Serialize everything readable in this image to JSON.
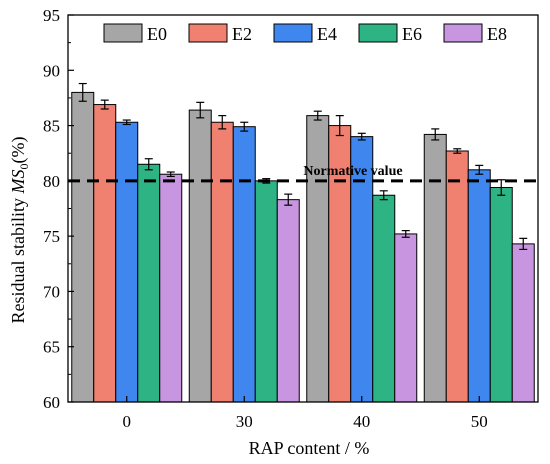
{
  "chart_data": {
    "type": "bar",
    "title": "",
    "xlabel": "RAP content / %",
    "ylabel_parts": [
      "Residual stability ",
      "MS",
      "0",
      "(%)"
    ],
    "ylim": [
      60,
      95
    ],
    "yticks": [
      60,
      65,
      70,
      75,
      80,
      85,
      90,
      95
    ],
    "categories": [
      "0",
      "30",
      "40",
      "50"
    ],
    "legend_position": "top",
    "grid": false,
    "series": [
      {
        "name": "E0",
        "color": "#a6a6a6",
        "values": [
          88.0,
          86.4,
          85.9,
          84.2
        ],
        "errors": [
          0.8,
          0.7,
          0.4,
          0.5
        ]
      },
      {
        "name": "E2",
        "color": "#f08070",
        "values": [
          86.9,
          85.3,
          85.0,
          82.7
        ],
        "errors": [
          0.4,
          0.6,
          0.9,
          0.2
        ]
      },
      {
        "name": "E4",
        "color": "#3f87ee",
        "values": [
          85.3,
          84.9,
          84.0,
          81.0
        ],
        "errors": [
          0.2,
          0.4,
          0.3,
          0.4
        ]
      },
      {
        "name": "E6",
        "color": "#2eb385",
        "values": [
          81.5,
          80.0,
          78.7,
          79.4
        ],
        "errors": [
          0.5,
          0.2,
          0.4,
          0.7
        ]
      },
      {
        "name": "E8",
        "color": "#c896e0",
        "values": [
          80.6,
          78.3,
          75.2,
          74.3
        ],
        "errors": [
          0.2,
          0.5,
          0.3,
          0.5
        ]
      }
    ],
    "reference_line": {
      "value": 80,
      "label": "Normative value"
    }
  }
}
